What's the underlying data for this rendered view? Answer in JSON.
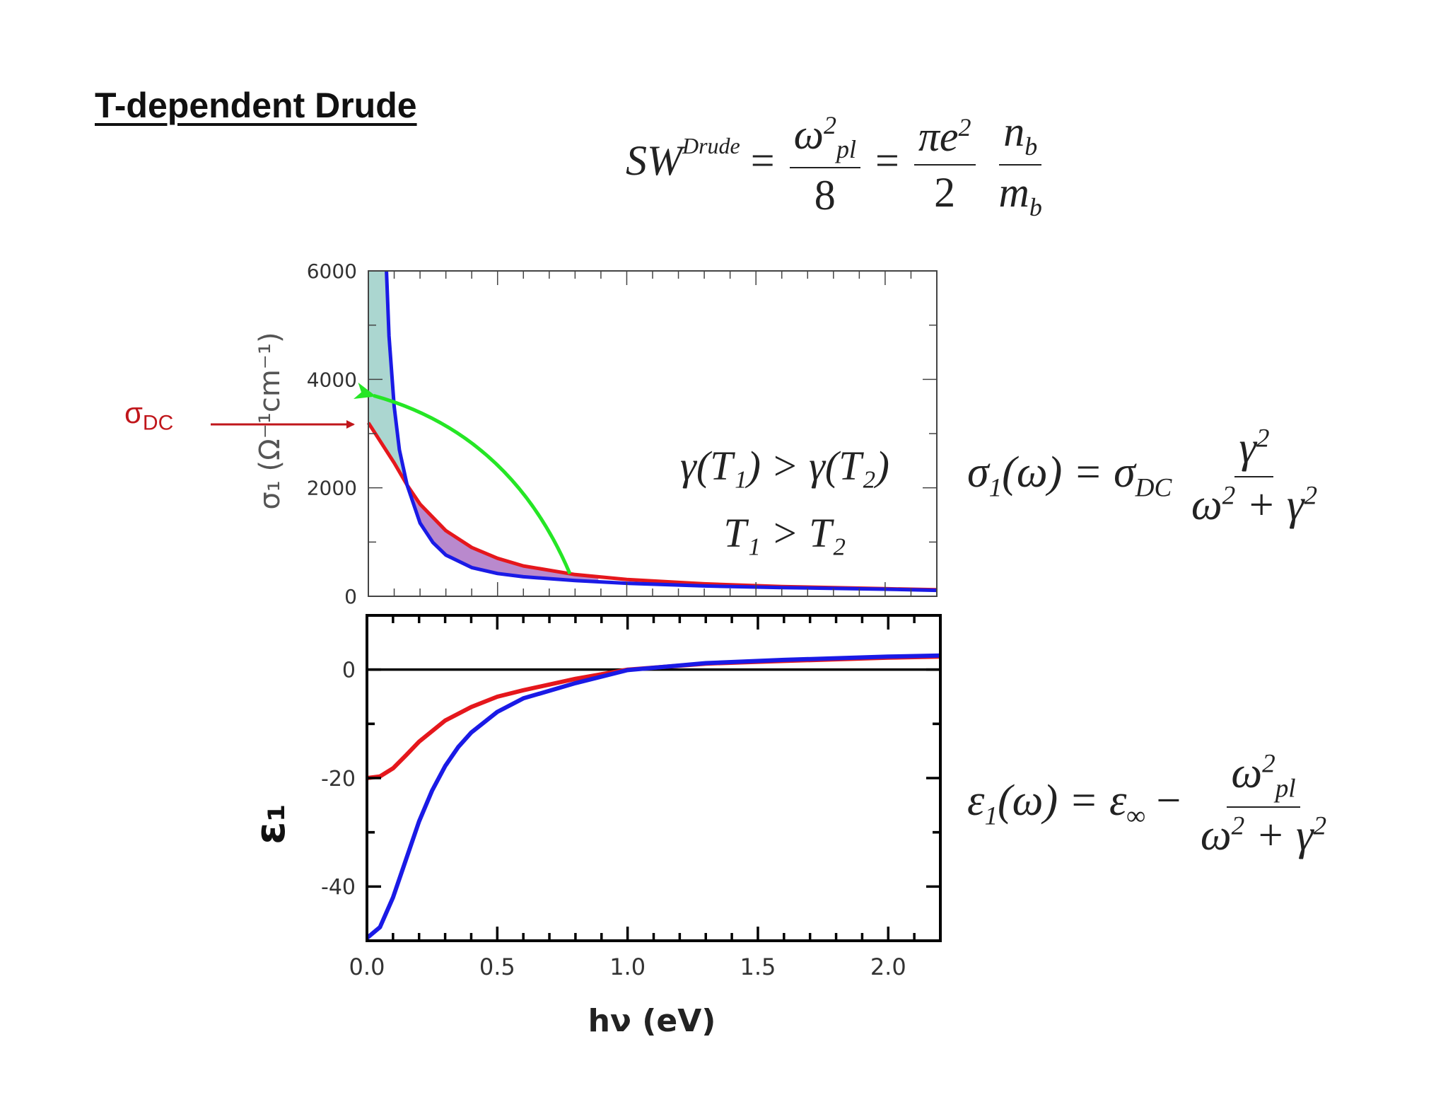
{
  "title": "T-dependent Drude",
  "equations": {
    "sw": {
      "lhs": "SW",
      "lhs_sup": "Drude",
      "num1": "ω",
      "num1_sup": "2",
      "num1_sub": "pl",
      "den1": "8",
      "num2": "πe",
      "num2_sup": "2",
      "den2": "2",
      "num3": "n",
      "num3_sub": "b",
      "den3": "m",
      "den3_sub": "b"
    },
    "sigma1": {
      "lhs": "σ",
      "lhs_sub": "1",
      "arg": "(ω) = σ",
      "dc_sub": "DC",
      "num": "γ",
      "num_sup": "2",
      "den": "ω",
      "den_sup1": "2",
      "den_mid": " + γ",
      "den_sup2": "2"
    },
    "eps1": {
      "lhs": "ε",
      "lhs_sub": "1",
      "arg": "(ω) = ε",
      "inf_sub": "∞",
      "minus": " −",
      "num": "ω",
      "num_sup": "2",
      "num_sub": "pl",
      "den": "ω",
      "den_sup1": "2",
      "den_mid": " + γ",
      "den_sup2": "2"
    }
  },
  "sigma_dc_label": {
    "main": "σ",
    "sub": "DC"
  },
  "annotations": {
    "line1": "γ(T₁) > γ(T₂)",
    "line2": "T₁ > T₂"
  },
  "colors": {
    "red": "#e5171c",
    "blue": "#1a1ae6",
    "green": "#25e625",
    "fill_teal": "#8fc8c0",
    "fill_purple": "#a86cc0",
    "arrow_red": "#c0161b"
  },
  "chart_data": [
    {
      "type": "line",
      "ylabel": "σ₁ (Ω⁻¹cm⁻¹)",
      "xlabel": "",
      "xlim": [
        0,
        2.2
      ],
      "ylim": [
        0,
        6000
      ],
      "yticks": [
        0,
        2000,
        4000,
        6000
      ],
      "ytick_labels": [
        "0",
        "2000",
        "4000",
        "6000"
      ],
      "series": [
        {
          "color": "red",
          "x": [
            0.0,
            0.1,
            0.15,
            0.2,
            0.3,
            0.4,
            0.5,
            0.6,
            0.8,
            1.0,
            1.3,
            1.6,
            2.0,
            2.2
          ],
          "y": [
            3200,
            2460,
            2050,
            1700,
            1210,
            900,
            700,
            560,
            400,
            310,
            230,
            180,
            140,
            120
          ]
        },
        {
          "color": "blue",
          "x": [
            0.07,
            0.08,
            0.1,
            0.12,
            0.15,
            0.2,
            0.25,
            0.3,
            0.4,
            0.5,
            0.6,
            0.8,
            1.0,
            1.3,
            1.6,
            2.0,
            2.2
          ],
          "y": [
            6000,
            4800,
            3500,
            2700,
            2050,
            1350,
            990,
            760,
            530,
            420,
            360,
            290,
            240,
            190,
            160,
            130,
            110
          ]
        }
      ]
    },
    {
      "type": "line",
      "ylabel": "ε₁",
      "xlabel": "hν (eV)",
      "xlim": [
        0,
        2.2
      ],
      "ylim": [
        -50,
        10
      ],
      "yticks": [
        0,
        -20,
        -40
      ],
      "ytick_labels": [
        "0",
        "-20",
        "-40"
      ],
      "xticks": [
        0.0,
        0.5,
        1.0,
        1.5,
        2.0
      ],
      "xtick_labels": [
        "0.0",
        "0.5",
        "1.0",
        "1.5",
        "2.0"
      ],
      "series": [
        {
          "color": "red",
          "x": [
            0.0,
            0.05,
            0.1,
            0.15,
            0.2,
            0.3,
            0.4,
            0.5,
            0.6,
            0.8,
            1.0,
            1.3,
            1.6,
            2.0,
            2.2
          ],
          "y": [
            -20,
            -19.7,
            -18.2,
            -15.8,
            -13.3,
            -9.4,
            -6.9,
            -5.0,
            -3.8,
            -1.7,
            0.0,
            1.1,
            1.6,
            2.2,
            2.4
          ]
        },
        {
          "color": "blue",
          "x": [
            0.0,
            0.05,
            0.1,
            0.15,
            0.2,
            0.25,
            0.3,
            0.35,
            0.4,
            0.5,
            0.6,
            0.8,
            1.0,
            1.3,
            1.6,
            2.0,
            2.2
          ],
          "y": [
            -49.5,
            -47.5,
            -42.0,
            -35.0,
            -28.0,
            -22.3,
            -17.8,
            -14.3,
            -11.6,
            -7.8,
            -5.3,
            -2.5,
            -0.1,
            1.2,
            1.8,
            2.4,
            2.6
          ]
        }
      ]
    }
  ]
}
